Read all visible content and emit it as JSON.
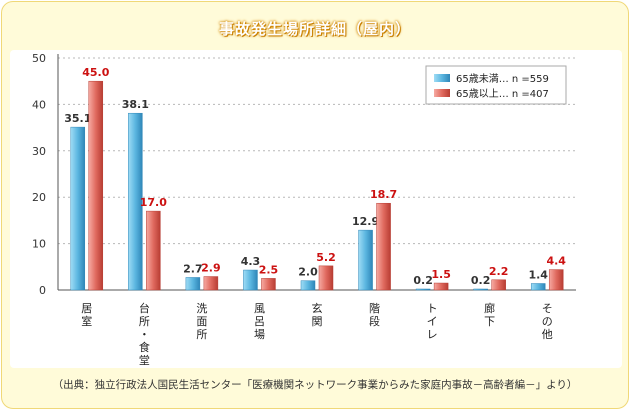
{
  "chart_data": {
    "type": "bar",
    "title": "事故発生場所詳細（屋内）",
    "categories": [
      "居室",
      "台所・食堂",
      "洗面所",
      "風呂場",
      "玄関",
      "階段",
      "トイレ",
      "廊下",
      "その他"
    ],
    "series": [
      {
        "name": "65歳未満… n =559",
        "values": [
          35.1,
          38.1,
          2.7,
          4.3,
          2.0,
          12.9,
          0.2,
          0.2,
          1.4
        ],
        "color": "#5bb6e0",
        "label_color": "#333333"
      },
      {
        "name": "65歳以上… n =407",
        "values": [
          45.0,
          17.0,
          2.9,
          2.5,
          5.2,
          18.7,
          1.5,
          2.2,
          4.4
        ],
        "color": "#e06a5f",
        "label_color": "#cc1111"
      }
    ],
    "ylim": [
      0,
      50
    ],
    "yticks": [
      "0",
      "10",
      "20",
      "30",
      "40",
      "50"
    ],
    "xlabel": "",
    "ylabel": "",
    "grid": true,
    "legend": "top-right"
  },
  "source_note": "（出典：独立行政法人国民生活センター「医療機関ネットワーク事業からみた家庭内事故－高齢者編－」より）"
}
